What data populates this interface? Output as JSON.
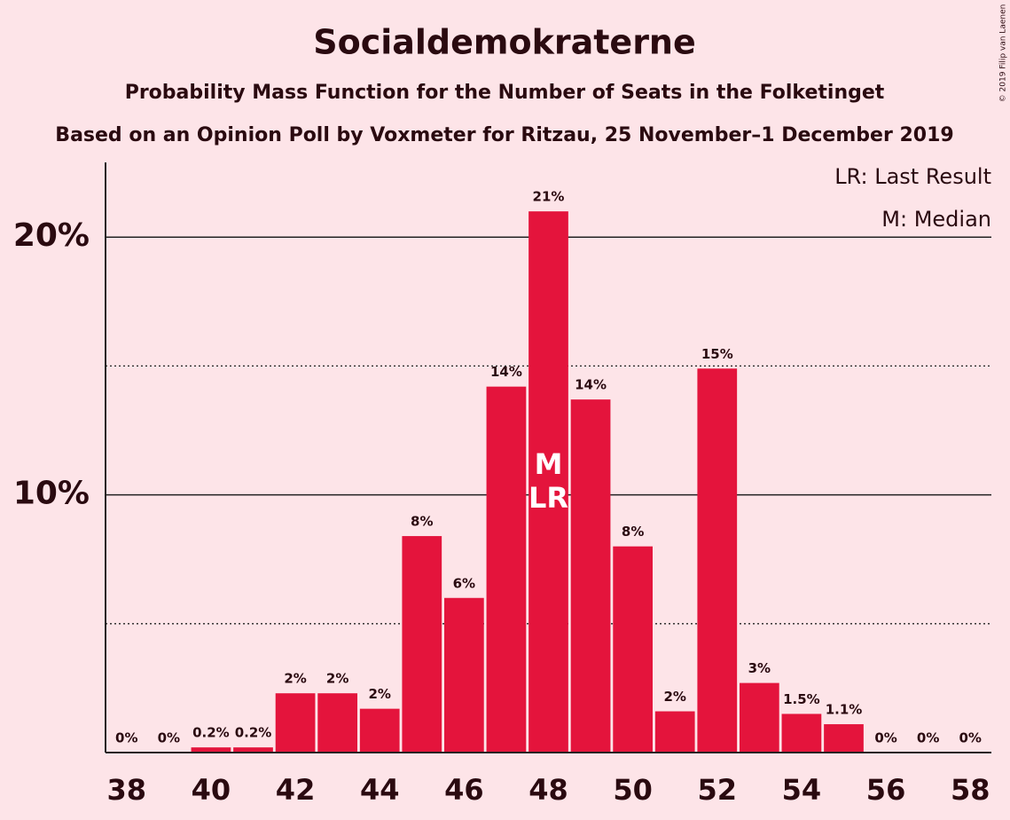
{
  "chart_data": {
    "type": "bar",
    "title": "Socialdemokraterne",
    "subtitle": "Probability Mass Function for the Number of Seats in the Folketinget",
    "subtitle2": "Based on an Opinion Poll by Voxmeter for Ritzau, 25 November–1 December 2019",
    "credit": "© 2019 Filip van Laenen",
    "legend_notes": [
      "LR: Last Result",
      "M: Median"
    ],
    "annotations": [
      {
        "x": 48,
        "text": "M"
      },
      {
        "x": 48,
        "text": "LR"
      }
    ],
    "x": [
      38,
      39,
      40,
      41,
      42,
      43,
      44,
      45,
      46,
      47,
      48,
      49,
      50,
      51,
      52,
      53,
      54,
      55,
      56,
      57,
      58
    ],
    "values": [
      0,
      0,
      0.2,
      0.2,
      2.3,
      2.3,
      1.7,
      8.4,
      6.0,
      14.2,
      21.0,
      13.7,
      8.0,
      1.6,
      14.9,
      2.7,
      1.5,
      1.1,
      0,
      0,
      0
    ],
    "value_labels": [
      "0%",
      "0%",
      "0.2%",
      "0.2%",
      "2%",
      "2%",
      "2%",
      "8%",
      "6%",
      "14%",
      "21%",
      "14%",
      "8%",
      "2%",
      "15%",
      "3%",
      "1.5%",
      "1.1%",
      "0%",
      "0%",
      "0%"
    ],
    "color": "#e4143c",
    "xlim": [
      37.5,
      58.5
    ],
    "xticks": [
      38,
      40,
      42,
      44,
      46,
      48,
      50,
      52,
      54,
      56,
      58
    ],
    "ylim": [
      0,
      22.9
    ],
    "yticks": [
      {
        "value": 10,
        "label": "10%"
      },
      {
        "value": 20,
        "label": "20%"
      }
    ],
    "minor_yticks": [
      5,
      15
    ],
    "grid": true
  }
}
